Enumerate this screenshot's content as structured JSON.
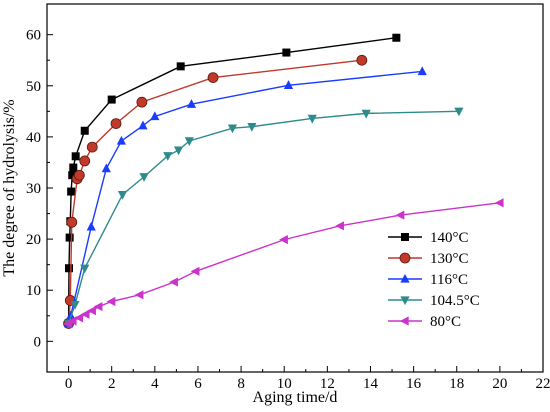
{
  "chart_data": {
    "type": "line",
    "xlabel": "Aging time/d",
    "ylabel": "The degree of hydrolysis/%",
    "xlim": [
      -1,
      22
    ],
    "ylim": [
      -6,
      66
    ],
    "xticks": [
      0,
      2,
      4,
      6,
      8,
      10,
      12,
      14,
      16,
      18,
      20,
      22
    ],
    "yticks": [
      0,
      10,
      20,
      30,
      40,
      50,
      60
    ],
    "grid": false,
    "legend_position": "bottom-right",
    "series": [
      {
        "name": "140°C",
        "color": "#000000",
        "marker": "square",
        "points": [
          {
            "x": 0.0,
            "y": 3.5
          },
          {
            "x": 0.02,
            "y": 14.3
          },
          {
            "x": 0.05,
            "y": 20.3
          },
          {
            "x": 0.08,
            "y": 23.5
          },
          {
            "x": 0.12,
            "y": 29.3
          },
          {
            "x": 0.17,
            "y": 32.5
          },
          {
            "x": 0.22,
            "y": 34.0
          },
          {
            "x": 0.33,
            "y": 36.2
          },
          {
            "x": 0.75,
            "y": 41.2
          },
          {
            "x": 2.0,
            "y": 47.3
          },
          {
            "x": 5.2,
            "y": 53.8
          },
          {
            "x": 10.1,
            "y": 56.5
          },
          {
            "x": 15.2,
            "y": 59.4
          }
        ]
      },
      {
        "name": "130°C",
        "color": "#c0392b",
        "marker": "circle",
        "points": [
          {
            "x": 0.0,
            "y": 3.5
          },
          {
            "x": 0.08,
            "y": 8.0
          },
          {
            "x": 0.15,
            "y": 23.3
          },
          {
            "x": 0.4,
            "y": 31.8
          },
          {
            "x": 0.5,
            "y": 32.5
          },
          {
            "x": 0.75,
            "y": 35.3
          },
          {
            "x": 1.1,
            "y": 38.0
          },
          {
            "x": 2.2,
            "y": 42.6
          },
          {
            "x": 3.4,
            "y": 46.8
          },
          {
            "x": 6.7,
            "y": 51.6
          },
          {
            "x": 13.6,
            "y": 55.0
          }
        ]
      },
      {
        "name": "116°C",
        "color": "#1a3cff",
        "marker": "triangle-up",
        "points": [
          {
            "x": 0.0,
            "y": 3.5
          },
          {
            "x": 0.1,
            "y": 5.0
          },
          {
            "x": 1.05,
            "y": 22.4
          },
          {
            "x": 1.75,
            "y": 33.8
          },
          {
            "x": 2.45,
            "y": 39.2
          },
          {
            "x": 3.45,
            "y": 42.2
          },
          {
            "x": 4.0,
            "y": 44.0
          },
          {
            "x": 5.7,
            "y": 46.4
          },
          {
            "x": 10.2,
            "y": 50.1
          },
          {
            "x": 16.4,
            "y": 52.8
          }
        ]
      },
      {
        "name": "104.5°C",
        "color": "#2e8b8b",
        "marker": "triangle-down",
        "points": [
          {
            "x": 0.0,
            "y": 3.5
          },
          {
            "x": 0.3,
            "y": 7.2
          },
          {
            "x": 0.75,
            "y": 14.3
          },
          {
            "x": 2.5,
            "y": 28.7
          },
          {
            "x": 3.5,
            "y": 32.2
          },
          {
            "x": 4.6,
            "y": 36.3
          },
          {
            "x": 5.1,
            "y": 37.4
          },
          {
            "x": 5.6,
            "y": 39.2
          },
          {
            "x": 7.6,
            "y": 41.7
          },
          {
            "x": 8.5,
            "y": 42.0
          },
          {
            "x": 11.3,
            "y": 43.6
          },
          {
            "x": 13.8,
            "y": 44.6
          },
          {
            "x": 18.1,
            "y": 45.0
          }
        ]
      },
      {
        "name": "80°C",
        "color": "#cc33cc",
        "marker": "triangle-left",
        "points": [
          {
            "x": 0.0,
            "y": 3.4
          },
          {
            "x": 0.2,
            "y": 4.0
          },
          {
            "x": 0.5,
            "y": 4.6
          },
          {
            "x": 0.8,
            "y": 5.3
          },
          {
            "x": 1.1,
            "y": 6.0
          },
          {
            "x": 1.4,
            "y": 6.8
          },
          {
            "x": 2.0,
            "y": 7.8
          },
          {
            "x": 3.3,
            "y": 9.1
          },
          {
            "x": 4.9,
            "y": 11.6
          },
          {
            "x": 5.9,
            "y": 13.7
          },
          {
            "x": 10.0,
            "y": 19.9
          },
          {
            "x": 12.6,
            "y": 22.6
          },
          {
            "x": 15.4,
            "y": 24.7
          },
          {
            "x": 20.0,
            "y": 27.1
          }
        ]
      }
    ]
  }
}
